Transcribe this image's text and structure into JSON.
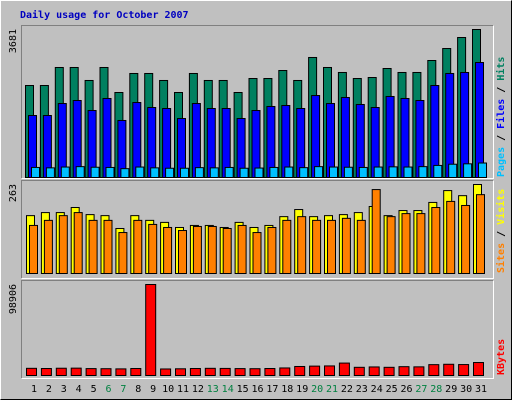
{
  "legend_separator": " / ",
  "chart_data": [
    {
      "type": "bar",
      "title": "Daily usage for October 2007",
      "ylim": [
        0,
        3681
      ],
      "yticks": [
        3681
      ],
      "series": [
        {
          "name": "Hits",
          "color": "#008060",
          "values": [
            2288,
            2288,
            2736,
            2736,
            2413,
            2736,
            2114,
            2587,
            2587,
            2413,
            2114,
            2587,
            2413,
            2413,
            2114,
            2462,
            2462,
            2661,
            2413,
            2985,
            2736,
            2612,
            2462,
            2487,
            2711,
            2612,
            2612,
            2910,
            3208,
            3482,
            3681
          ]
        },
        {
          "name": "Files",
          "color": "#0000ff",
          "values": [
            1542,
            1542,
            1840,
            1915,
            1666,
            1965,
            1418,
            1865,
            1741,
            1716,
            1467,
            1840,
            1716,
            1716,
            1467,
            1666,
            1766,
            1791,
            1716,
            2039,
            1840,
            1990,
            1816,
            1741,
            2015,
            1965,
            1915,
            2288,
            2587,
            2612,
            2860
          ]
        },
        {
          "name": "Pages",
          "color": "#00c0ff",
          "values": [
            250,
            240,
            260,
            270,
            255,
            250,
            220,
            260,
            240,
            230,
            230,
            245,
            240,
            250,
            230,
            235,
            250,
            260,
            245,
            270,
            260,
            255,
            250,
            260,
            265,
            260,
            270,
            300,
            330,
            340,
            360
          ]
        }
      ]
    },
    {
      "type": "bar",
      "ylim": [
        0,
        263
      ],
      "yticks": [
        263
      ],
      "series": [
        {
          "name": "Visits",
          "color": "#ffff00",
          "values": [
            171,
            180,
            180,
            195,
            174,
            171,
            133,
            171,
            157,
            151,
            136,
            142,
            142,
            136,
            151,
            136,
            142,
            168,
            189,
            168,
            171,
            174,
            180,
            198,
            171,
            186,
            186,
            210,
            245,
            230,
            263
          ]
        },
        {
          "name": "Sites",
          "color": "#ff8000",
          "values": [
            142,
            157,
            171,
            180,
            157,
            157,
            121,
            157,
            145,
            136,
            127,
            139,
            139,
            133,
            142,
            121,
            136,
            157,
            168,
            157,
            157,
            163,
            157,
            248,
            168,
            177,
            177,
            195,
            213,
            201,
            233
          ]
        }
      ]
    },
    {
      "type": "bar",
      "ylim": [
        0,
        98906
      ],
      "yticks": [
        98906
      ],
      "categories": [
        "1",
        "2",
        "3",
        "4",
        "5",
        "6",
        "7",
        "8",
        "9",
        "10",
        "11",
        "12",
        "13",
        "14",
        "15",
        "16",
        "17",
        "18",
        "19",
        "20",
        "21",
        "22",
        "23",
        "24",
        "25",
        "26",
        "27",
        "28",
        "29",
        "30",
        "31"
      ],
      "highlight_categories": [
        "6",
        "7",
        "13",
        "14",
        "20",
        "21",
        "27",
        "28"
      ],
      "highlight_color": "#008040",
      "category_color": "#000000",
      "series": [
        {
          "name": "KBytes",
          "color": "#ff0000",
          "values": [
            7800,
            7600,
            7900,
            8000,
            7500,
            7400,
            7200,
            7600,
            98906,
            7100,
            7300,
            7600,
            7800,
            7700,
            7500,
            7400,
            7600,
            8200,
            9800,
            10200,
            10400,
            13500,
            8900,
            9300,
            8900,
            9600,
            9400,
            11800,
            12200,
            11900,
            14100
          ]
        }
      ]
    }
  ]
}
